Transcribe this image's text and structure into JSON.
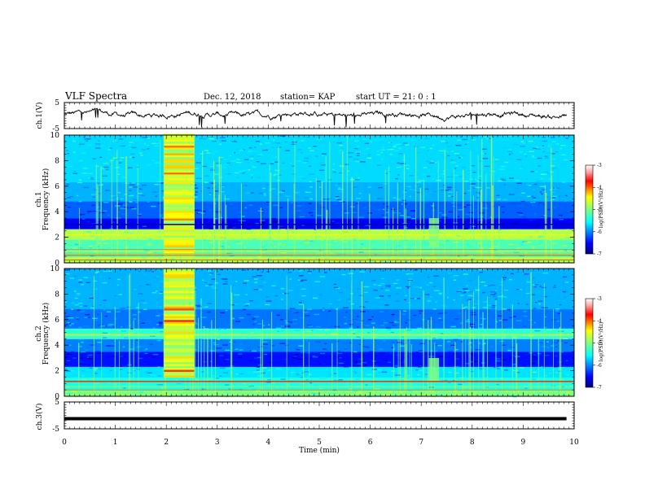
{
  "header": {
    "title": "VLF Spectra",
    "date": "Dec. 12, 2018",
    "station": "station= KAP",
    "start": "start  UT =   21: 0  : 1"
  },
  "chart_data": [
    {
      "type": "line",
      "panel": "ch1-voltage",
      "ylabel": "ch.1(V)",
      "ylim": [
        -5,
        5
      ],
      "yticks": [
        "5",
        "-5"
      ],
      "x_range_min": [
        0,
        9.85
      ],
      "y_mean": 0.3,
      "y_amplitude_approx": 2.5
    },
    {
      "type": "heatmap",
      "panel": "ch1-spectrogram",
      "ylabel": [
        "ch.1",
        "Frequency (kHz)"
      ],
      "ylim": [
        0,
        10
      ],
      "yticks": [
        "0",
        "2",
        "4",
        "6",
        "8",
        "10"
      ],
      "xlim": [
        0,
        10
      ],
      "colorbar": {
        "label": "log(PSD)(V²/Hz)",
        "range": [
          -7,
          -3
        ],
        "ticks": [
          "-3",
          "-4",
          "-5",
          "-6",
          "-7"
        ]
      },
      "features": [
        {
          "kind": "broadband-burst",
          "x_min": [
            1.95,
            2.55
          ],
          "f_khz": [
            0.5,
            10
          ]
        },
        {
          "kind": "localized-emission",
          "x_min": [
            7.15,
            7.35
          ],
          "f_khz": [
            1.2,
            3.5
          ]
        },
        {
          "kind": "persistent-line",
          "f_khz": 3.0
        },
        {
          "kind": "persistent-line",
          "f_khz": 2.2
        }
      ]
    },
    {
      "type": "heatmap",
      "panel": "ch2-spectrogram",
      "ylabel": [
        "ch.2",
        "Frequency (kHz)"
      ],
      "ylim": [
        0,
        10
      ],
      "yticks": [
        "0",
        "2",
        "4",
        "6",
        "8",
        "10"
      ],
      "xlim": [
        0,
        10
      ],
      "colorbar": {
        "label": "log(PSD)(V²/Hz)",
        "range": [
          -7,
          -3
        ],
        "ticks": [
          "-3",
          "-4",
          "-5",
          "-6",
          "-7"
        ]
      },
      "features": [
        {
          "kind": "broadband-burst",
          "x_min": [
            1.95,
            2.55
          ],
          "f_khz": [
            1.5,
            10
          ]
        },
        {
          "kind": "localized-emission",
          "x_min": [
            7.15,
            7.35
          ],
          "f_khz": [
            1.2,
            3.0
          ]
        },
        {
          "kind": "persistent-line",
          "f_khz": 4.8
        }
      ]
    },
    {
      "type": "line",
      "panel": "ch3-voltage",
      "ylabel": "ch.3(V)",
      "ylim": [
        -5,
        5
      ],
      "yticks": [
        "5",
        "-5"
      ],
      "y_constant": -1.2,
      "x_range_min": [
        0,
        9.85
      ]
    }
  ],
  "xaxis": {
    "label": "Time (min)",
    "ticks": [
      "0",
      "1",
      "2",
      "3",
      "4",
      "5",
      "6",
      "7",
      "8",
      "9",
      "10"
    ],
    "range": [
      0,
      10
    ]
  }
}
